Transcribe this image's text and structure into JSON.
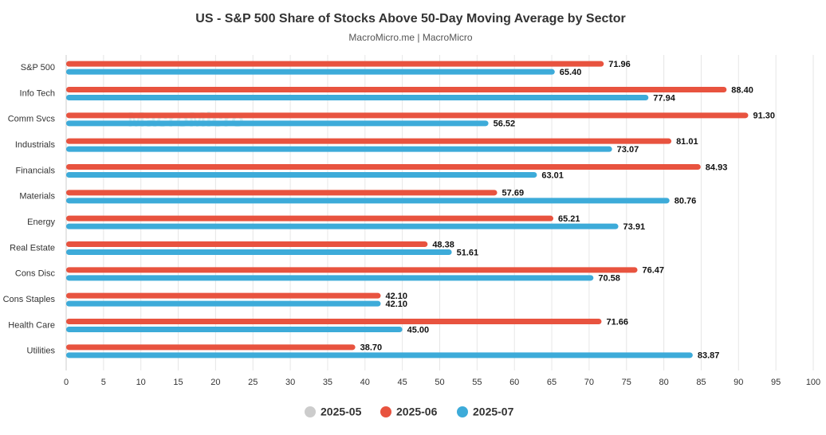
{
  "chart_data": {
    "type": "hbar",
    "title": "US - S&P 500 Share of Stocks Above 50-Day Moving Average by Sector",
    "subtitle": "MacroMicro.me | MacroMicro",
    "watermark": "MacroMicro",
    "categories": [
      "S&P 500",
      "Info Tech",
      "Comm Svcs",
      "Industrials",
      "Financials",
      "Materials",
      "Energy",
      "Real Estate",
      "Cons Disc",
      "Cons Staples",
      "Health Care",
      "Utilities"
    ],
    "series": [
      {
        "name": "2025-05",
        "color": "#cccccc",
        "visible": false,
        "values": [
          null,
          null,
          null,
          null,
          null,
          null,
          null,
          null,
          null,
          null,
          null,
          null
        ]
      },
      {
        "name": "2025-06",
        "color": "#e8533f",
        "visible": true,
        "values": [
          71.96,
          88.4,
          91.3,
          81.01,
          84.93,
          57.69,
          65.21,
          48.38,
          76.47,
          42.1,
          71.66,
          38.7
        ],
        "value_labels": [
          "71.96",
          "88.40",
          "91.30",
          "81.01",
          "84.93",
          "57.69",
          "65.21",
          "48.38",
          "76.47",
          "42.10",
          "71.66",
          "38.70"
        ]
      },
      {
        "name": "2025-07",
        "color": "#3dabd9",
        "visible": true,
        "values": [
          65.4,
          77.94,
          56.52,
          73.07,
          63.01,
          80.76,
          73.91,
          51.61,
          70.58,
          42.1,
          45.0,
          83.87
        ],
        "value_labels": [
          "65.40",
          "77.94",
          "56.52",
          "73.07",
          "63.01",
          "80.76",
          "73.91",
          "51.61",
          "70.58",
          "42.10",
          "45.00",
          "83.87"
        ]
      }
    ],
    "xlim": [
      0,
      100
    ],
    "xticks": [
      0,
      5,
      10,
      15,
      20,
      25,
      30,
      35,
      40,
      45,
      50,
      55,
      60,
      65,
      70,
      75,
      80,
      85,
      90,
      95,
      100
    ],
    "grid": true
  }
}
